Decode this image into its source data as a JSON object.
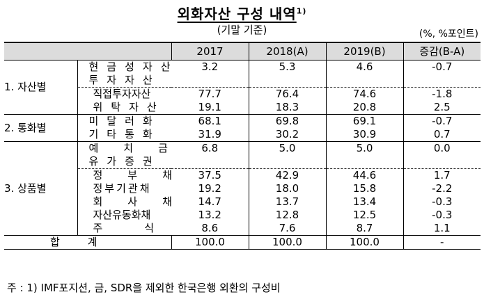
{
  "title": "외화자산 구성 내역",
  "title_sup": "1)",
  "subtitle": "(기말 기준)",
  "unit": "(%, %포인트)",
  "columns": [
    "2017",
    "2018(A)",
    "2019(B)",
    "증감(B-A)"
  ],
  "groups": {
    "assets": "1. 자산별",
    "currency": "2. 통화별",
    "product": "3. 상품별"
  },
  "rows": [
    {
      "label": "현금성자산",
      "values": [
        "3.2",
        "5.3",
        "4.6",
        "-0.7"
      ]
    },
    {
      "label": "투자자산",
      "values": [
        "",
        "",
        "",
        ""
      ]
    },
    {
      "label": "직접투자자산",
      "values": [
        "77.7",
        "76.4",
        "74.6",
        "-1.8"
      ]
    },
    {
      "label": "위탁자산",
      "values": [
        "19.1",
        "18.3",
        "20.8",
        "2.5"
      ]
    },
    {
      "label": "미달러화",
      "values": [
        "68.1",
        "69.8",
        "69.1",
        "-0.7"
      ]
    },
    {
      "label": "기타통화",
      "values": [
        "31.9",
        "30.2",
        "30.9",
        "0.7"
      ]
    },
    {
      "label": "예치금",
      "values": [
        "6.8",
        "5.0",
        "5.0",
        "0.0"
      ]
    },
    {
      "label": "유가증권",
      "values": [
        "",
        "",
        "",
        ""
      ]
    },
    {
      "label": "정부채",
      "values": [
        "37.5",
        "42.9",
        "44.6",
        "1.7"
      ]
    },
    {
      "label": "정부기관채",
      "values": [
        "19.2",
        "18.0",
        "15.8",
        "-2.2"
      ]
    },
    {
      "label": "회사채",
      "values": [
        "14.7",
        "13.7",
        "13.4",
        "-0.3"
      ]
    },
    {
      "label": "자산유동화채",
      "values": [
        "13.2",
        "12.8",
        "12.5",
        "-0.3"
      ]
    },
    {
      "label": "주식",
      "values": [
        "8.6",
        "7.6",
        "8.7",
        "1.1"
      ]
    }
  ],
  "total": {
    "label": "합계",
    "values": [
      "100.0",
      "100.0",
      "100.0",
      "-"
    ]
  },
  "note": "주 : 1) IMF포지션, 금, SDR을 제외한 한국은행 외환의 구성비"
}
